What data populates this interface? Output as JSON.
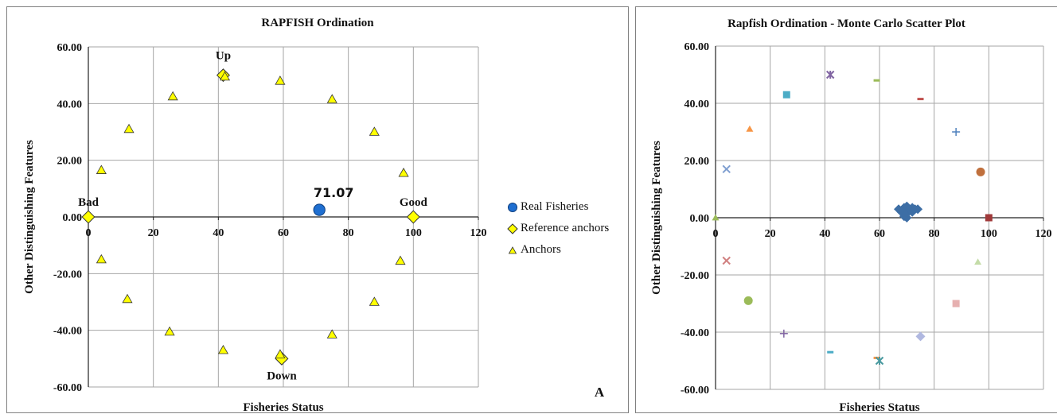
{
  "left_chart": {
    "title": "RAPFISH Ordination",
    "xlabel": "Fisheries Status",
    "ylabel": "Other Distinguishing Features",
    "panel_label": "A",
    "value_label": "71.07",
    "annotations": [
      "Up",
      "Down",
      "Bad",
      "Good"
    ],
    "legend": [
      "Real Fisheries",
      "Reference anchors",
      "Anchors"
    ]
  },
  "right_chart": {
    "title": "Rapfish Ordination - Monte Carlo Scatter Plot",
    "xlabel": "Fisheries Status",
    "ylabel": "Other Distinguishing Features"
  },
  "chart_data": [
    {
      "type": "scatter",
      "title": "RAPFISH Ordination",
      "xlabel": "Fisheries Status",
      "ylabel": "Other Distinguishing Features",
      "xlim": [
        0,
        120
      ],
      "ylim": [
        -60,
        60
      ],
      "xticks": [
        "0",
        "20",
        "40",
        "60",
        "80",
        "100",
        "120"
      ],
      "yticks": [
        "60.00",
        "40.00",
        "20.00",
        "0.00",
        "-20.00",
        "-40.00",
        "-60.00"
      ],
      "grid": true,
      "legend_position": "right",
      "series": [
        {
          "name": "Real Fisheries",
          "color": "#1f6fd1",
          "marker": "circle",
          "points": [
            [
              71.07,
              2.5
            ]
          ]
        },
        {
          "name": "Reference anchors",
          "color": "#ffff00",
          "marker": "diamond",
          "points": [
            [
              0,
              0
            ],
            [
              100,
              0
            ],
            [
              41.5,
              50
            ],
            [
              59.5,
              -50
            ]
          ]
        },
        {
          "name": "Anchors",
          "color": "#ffff00",
          "marker": "triangle",
          "points": [
            [
              42,
              49.5
            ],
            [
              59,
              48
            ],
            [
              75,
              41.5
            ],
            [
              88,
              30
            ],
            [
              97,
              15.5
            ],
            [
              26,
              42.5
            ],
            [
              12.5,
              31
            ],
            [
              4,
              16.5
            ],
            [
              4,
              -15
            ],
            [
              12,
              -29
            ],
            [
              25,
              -40.5
            ],
            [
              41.5,
              -47
            ],
            [
              59,
              -48.5
            ],
            [
              75,
              -41.5
            ],
            [
              88,
              -30
            ],
            [
              96,
              -15.5
            ]
          ]
        }
      ],
      "annotations": [
        {
          "text": "Up",
          "x": 41.5,
          "y": 50
        },
        {
          "text": "Down",
          "x": 59.5,
          "y": -50
        },
        {
          "text": "Bad",
          "x": 0,
          "y": 0
        },
        {
          "text": "Good",
          "x": 100,
          "y": 0
        },
        {
          "text": "71.07",
          "x": 71.07,
          "y": 2.5
        }
      ]
    },
    {
      "type": "scatter",
      "title": "Rapfish Ordination - Monte Carlo Scatter Plot",
      "xlabel": "Fisheries Status",
      "ylabel": "Other Distinguishing Features",
      "xlim": [
        0,
        120
      ],
      "ylim": [
        -60,
        60
      ],
      "xticks": [
        "0",
        "20",
        "40",
        "60",
        "80",
        "100",
        "120"
      ],
      "yticks": [
        "60.00",
        "40.00",
        "20.00",
        "0.00",
        "-20.00",
        "-40.00",
        "-60.00"
      ],
      "grid": true,
      "series": [
        {
          "color": "#3d6ea5",
          "marker": "diamond",
          "points": [
            [
              67,
              3
            ],
            [
              68,
              2
            ],
            [
              69,
              3.5
            ],
            [
              70,
              4
            ],
            [
              71,
              2.5
            ],
            [
              72,
              3.5
            ],
            [
              70,
              1.5
            ],
            [
              69,
              0.5
            ],
            [
              70,
              0
            ],
            [
              71,
              3
            ],
            [
              72,
              2
            ],
            [
              73,
              3
            ],
            [
              74,
              3
            ],
            [
              68,
              2.5
            ],
            [
              69.5,
              1
            ]
          ]
        },
        {
          "color": "#8064a2",
          "marker": "asterisk",
          "points": [
            [
              42,
              50
            ]
          ]
        },
        {
          "color": "#9bbb59",
          "marker": "dash",
          "points": [
            [
              59,
              48
            ]
          ]
        },
        {
          "color": "#c0504d",
          "marker": "dash",
          "points": [
            [
              75,
              41.5
            ]
          ]
        },
        {
          "color": "#4f81bd",
          "marker": "plus",
          "points": [
            [
              88,
              30
            ]
          ]
        },
        {
          "color": "#c0703d",
          "marker": "circle",
          "points": [
            [
              97,
              16
            ]
          ]
        },
        {
          "color": "#a0393a",
          "marker": "square",
          "points": [
            [
              100,
              0
            ]
          ]
        },
        {
          "color": "#4bacc6",
          "marker": "square",
          "points": [
            [
              26,
              43
            ]
          ]
        },
        {
          "color": "#f79646",
          "marker": "triangle",
          "points": [
            [
              12.5,
              31
            ]
          ]
        },
        {
          "color": "#7f9fd0",
          "marker": "x",
          "points": [
            [
              4,
              17
            ]
          ]
        },
        {
          "color": "#9bbb59",
          "marker": "triangle",
          "points": [
            [
              0,
              0
            ]
          ]
        },
        {
          "color": "#d08080",
          "marker": "x",
          "points": [
            [
              4,
              -15
            ]
          ]
        },
        {
          "color": "#9bbb59",
          "marker": "circle",
          "points": [
            [
              12,
              -29
            ]
          ]
        },
        {
          "color": "#8064a2",
          "marker": "plus",
          "points": [
            [
              25,
              -40.5
            ]
          ]
        },
        {
          "color": "#4bacc6",
          "marker": "dash",
          "points": [
            [
              42,
              -47
            ]
          ]
        },
        {
          "color": "#f79646",
          "marker": "dash",
          "points": [
            [
              59,
              -49
            ]
          ]
        },
        {
          "color": "#4a9aa0",
          "marker": "asterisk",
          "points": [
            [
              60,
              -50
            ]
          ]
        },
        {
          "color": "#b0b8e0",
          "marker": "diamond",
          "points": [
            [
              75,
              -41.5
            ]
          ]
        },
        {
          "color": "#e6b0b0",
          "marker": "square",
          "points": [
            [
              88,
              -30
            ]
          ]
        },
        {
          "color": "#c4dca8",
          "marker": "triangle",
          "points": [
            [
              96,
              -15.5
            ]
          ]
        }
      ]
    }
  ]
}
